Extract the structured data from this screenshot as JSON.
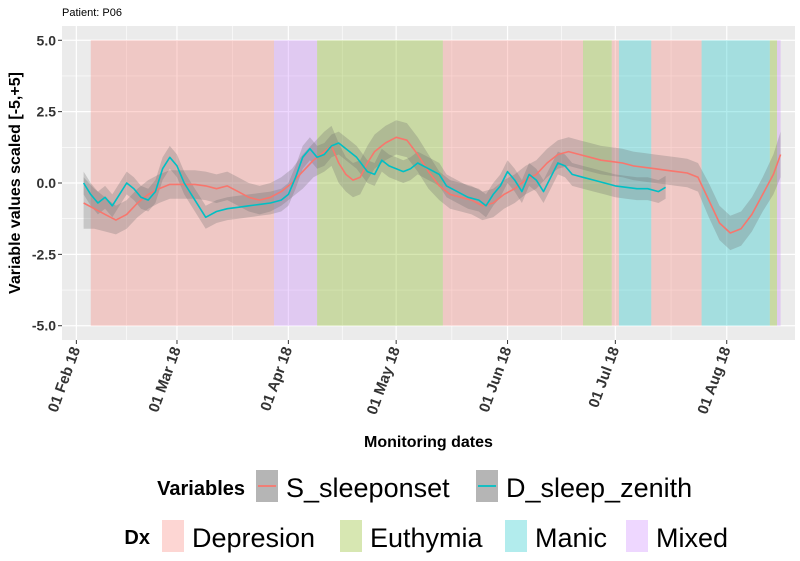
{
  "chart_data": {
    "type": "line",
    "title": "Patient: P06",
    "xlabel": "Monitoring dates",
    "ylabel": "Variable values scaled [-5,+5]",
    "x_type": "date",
    "xlim": [
      "2018-01-28",
      "2018-08-20"
    ],
    "ylim": [
      -5.5,
      5.5
    ],
    "x_ticks": [
      {
        "date": "2018-02-01",
        "label": "01 Feb 18"
      },
      {
        "date": "2018-03-01",
        "label": "01 Mar 18"
      },
      {
        "date": "2018-04-01",
        "label": "01 Apr 18"
      },
      {
        "date": "2018-05-01",
        "label": "01 May 18"
      },
      {
        "date": "2018-06-01",
        "label": "01 Jun 18"
      },
      {
        "date": "2018-07-01",
        "label": "01 Jul 18"
      },
      {
        "date": "2018-08-01",
        "label": "01 Aug 18"
      }
    ],
    "y_ticks": [
      {
        "value": 5,
        "label": "5.0"
      },
      {
        "value": 2.5,
        "label": "2.5"
      },
      {
        "value": 0,
        "label": "0.0"
      },
      {
        "value": -2.5,
        "label": "-2.5"
      },
      {
        "value": -5,
        "label": "-5.0"
      }
    ],
    "grid": true,
    "legend_position": "bottom",
    "legend": {
      "variables_title": "Variables",
      "dx_title": "Dx"
    },
    "dx_periods": [
      {
        "start": "2018-02-05",
        "end": "2018-03-28",
        "dx": "Depresion"
      },
      {
        "start": "2018-03-28",
        "end": "2018-04-09",
        "dx": "Mixed"
      },
      {
        "start": "2018-04-09",
        "end": "2018-05-14",
        "dx": "Euthymia"
      },
      {
        "start": "2018-05-14",
        "end": "2018-06-22",
        "dx": "Depresion"
      },
      {
        "start": "2018-06-22",
        "end": "2018-06-30",
        "dx": "Euthymia"
      },
      {
        "start": "2018-06-30",
        "end": "2018-07-02",
        "dx": "Depresion"
      },
      {
        "start": "2018-07-02",
        "end": "2018-07-11",
        "dx": "Manic"
      },
      {
        "start": "2018-07-11",
        "end": "2018-07-25",
        "dx": "Depresion"
      },
      {
        "start": "2018-07-25",
        "end": "2018-08-13",
        "dx": "Manic"
      },
      {
        "start": "2018-08-13",
        "end": "2018-08-15",
        "dx": "Euthymia"
      },
      {
        "start": "2018-08-15",
        "end": "2018-08-16",
        "dx": "Mixed"
      }
    ],
    "dx_categories": [
      {
        "name": "Depresion",
        "color": "#F8766D"
      },
      {
        "name": "Euthymia",
        "color": "#7CAE00"
      },
      {
        "name": "Manic",
        "color": "#00BFC4"
      },
      {
        "name": "Mixed",
        "color": "#C77CFF"
      }
    ],
    "series": [
      {
        "name": "S_sleeponset",
        "color": "#F8766D",
        "points": [
          [
            "2018-02-03",
            -0.7,
            0.9
          ],
          [
            "2018-02-06",
            -0.9,
            0.7
          ],
          [
            "2018-02-09",
            -1.1,
            0.6
          ],
          [
            "2018-02-12",
            -1.3,
            0.5
          ],
          [
            "2018-02-15",
            -1.1,
            0.5
          ],
          [
            "2018-02-18",
            -0.7,
            0.5
          ],
          [
            "2018-02-21",
            -0.4,
            0.5
          ],
          [
            "2018-02-24",
            -0.2,
            0.5
          ],
          [
            "2018-02-27",
            -0.05,
            0.5
          ],
          [
            "2018-03-03",
            -0.05,
            0.5
          ],
          [
            "2018-03-06",
            -0.05,
            0.5
          ],
          [
            "2018-03-09",
            -0.1,
            0.5
          ],
          [
            "2018-03-12",
            -0.2,
            0.5
          ],
          [
            "2018-03-15",
            -0.1,
            0.5
          ],
          [
            "2018-03-18",
            -0.3,
            0.5
          ],
          [
            "2018-03-21",
            -0.5,
            0.5
          ],
          [
            "2018-03-24",
            -0.6,
            0.5
          ],
          [
            "2018-03-27",
            -0.5,
            0.5
          ],
          [
            "2018-03-30",
            -0.3,
            0.5
          ],
          [
            "2018-04-02",
            0.0,
            0.5
          ],
          [
            "2018-04-05",
            0.4,
            0.6
          ],
          [
            "2018-04-08",
            0.8,
            0.6
          ],
          [
            "2018-04-11",
            1.1,
            0.7
          ],
          [
            "2018-04-13",
            1.3,
            0.7
          ],
          [
            "2018-04-15",
            0.7,
            0.7
          ],
          [
            "2018-04-17",
            0.3,
            0.6
          ],
          [
            "2018-04-19",
            0.1,
            0.6
          ],
          [
            "2018-04-21",
            0.2,
            0.6
          ],
          [
            "2018-04-23",
            0.7,
            0.6
          ],
          [
            "2018-04-25",
            1.1,
            0.6
          ],
          [
            "2018-04-28",
            1.4,
            0.6
          ],
          [
            "2018-05-01",
            1.6,
            0.6
          ],
          [
            "2018-05-04",
            1.5,
            0.6
          ],
          [
            "2018-05-07",
            1.0,
            0.6
          ],
          [
            "2018-05-10",
            0.4,
            0.6
          ],
          [
            "2018-05-13",
            -0.1,
            0.5
          ],
          [
            "2018-05-16",
            -0.4,
            0.5
          ],
          [
            "2018-05-19",
            -0.5,
            0.5
          ],
          [
            "2018-05-22",
            -0.6,
            0.5
          ],
          [
            "2018-05-25",
            -0.8,
            0.5
          ],
          [
            "2018-05-28",
            -0.7,
            0.5
          ],
          [
            "2018-05-31",
            -0.4,
            0.5
          ],
          [
            "2018-06-03",
            -0.2,
            0.5
          ],
          [
            "2018-06-06",
            0.1,
            0.5
          ],
          [
            "2018-06-09",
            0.3,
            0.5
          ],
          [
            "2018-06-12",
            0.7,
            0.5
          ],
          [
            "2018-06-15",
            1.0,
            0.5
          ],
          [
            "2018-06-18",
            1.1,
            0.5
          ],
          [
            "2018-06-21",
            1.0,
            0.5
          ],
          [
            "2018-06-24",
            0.9,
            0.5
          ],
          [
            "2018-06-27",
            0.8,
            0.5
          ],
          [
            "2018-06-30",
            0.75,
            0.5
          ],
          [
            "2018-07-03",
            0.7,
            0.5
          ],
          [
            "2018-07-06",
            0.6,
            0.5
          ],
          [
            "2018-07-09",
            0.55,
            0.5
          ],
          [
            "2018-07-12",
            0.5,
            0.5
          ],
          [
            "2018-07-15",
            0.45,
            0.5
          ],
          [
            "2018-07-18",
            0.4,
            0.5
          ],
          [
            "2018-07-21",
            0.35,
            0.5
          ],
          [
            "2018-07-24",
            0.2,
            0.5
          ],
          [
            "2018-07-27",
            -0.6,
            0.6
          ],
          [
            "2018-07-30",
            -1.4,
            0.6
          ],
          [
            "2018-08-02",
            -1.75,
            0.6
          ],
          [
            "2018-08-05",
            -1.6,
            0.6
          ],
          [
            "2018-08-08",
            -1.1,
            0.6
          ],
          [
            "2018-08-11",
            -0.4,
            0.6
          ],
          [
            "2018-08-14",
            0.3,
            0.7
          ],
          [
            "2018-08-16",
            1.0,
            0.8
          ]
        ]
      },
      {
        "name": "D_sleep_zenith",
        "color": "#00BFC4",
        "points": [
          [
            "2018-02-03",
            0.0,
            0.4
          ],
          [
            "2018-02-05",
            -0.4,
            0.4
          ],
          [
            "2018-02-07",
            -0.7,
            0.4
          ],
          [
            "2018-02-09",
            -0.5,
            0.4
          ],
          [
            "2018-02-11",
            -0.8,
            0.4
          ],
          [
            "2018-02-13",
            -0.4,
            0.4
          ],
          [
            "2018-02-15",
            0.0,
            0.4
          ],
          [
            "2018-02-17",
            -0.2,
            0.4
          ],
          [
            "2018-02-19",
            -0.5,
            0.4
          ],
          [
            "2018-02-21",
            -0.6,
            0.4
          ],
          [
            "2018-02-23",
            -0.3,
            0.4
          ],
          [
            "2018-02-25",
            0.5,
            0.4
          ],
          [
            "2018-02-27",
            0.9,
            0.4
          ],
          [
            "2018-03-01",
            0.6,
            0.4
          ],
          [
            "2018-03-03",
            0.0,
            0.4
          ],
          [
            "2018-03-06",
            -0.6,
            0.4
          ],
          [
            "2018-03-09",
            -1.2,
            0.4
          ],
          [
            "2018-03-12",
            -1.0,
            0.4
          ],
          [
            "2018-03-15",
            -0.9,
            0.4
          ],
          [
            "2018-03-18",
            -0.85,
            0.4
          ],
          [
            "2018-03-21",
            -0.8,
            0.4
          ],
          [
            "2018-03-24",
            -0.75,
            0.4
          ],
          [
            "2018-03-27",
            -0.7,
            0.4
          ],
          [
            "2018-03-30",
            -0.6,
            0.4
          ],
          [
            "2018-04-01",
            -0.4,
            0.4
          ],
          [
            "2018-04-03",
            0.2,
            0.4
          ],
          [
            "2018-04-05",
            0.9,
            0.4
          ],
          [
            "2018-04-07",
            1.2,
            0.4
          ],
          [
            "2018-04-09",
            0.9,
            0.4
          ],
          [
            "2018-04-11",
            1.0,
            0.4
          ],
          [
            "2018-04-13",
            1.3,
            0.4
          ],
          [
            "2018-04-15",
            1.4,
            0.4
          ],
          [
            "2018-04-17",
            1.2,
            0.4
          ],
          [
            "2018-04-20",
            0.9,
            0.4
          ],
          [
            "2018-04-23",
            0.4,
            0.4
          ],
          [
            "2018-04-25",
            0.3,
            0.4
          ],
          [
            "2018-04-27",
            0.8,
            0.4
          ],
          [
            "2018-04-29",
            0.6,
            0.4
          ],
          [
            "2018-05-01",
            0.5,
            0.4
          ],
          [
            "2018-05-03",
            0.4,
            0.4
          ],
          [
            "2018-05-05",
            0.5,
            0.4
          ],
          [
            "2018-05-07",
            0.7,
            0.4
          ],
          [
            "2018-05-10",
            0.5,
            0.4
          ],
          [
            "2018-05-13",
            0.3,
            0.4
          ],
          [
            "2018-05-15",
            -0.1,
            0.4
          ],
          [
            "2018-05-18",
            -0.3,
            0.4
          ],
          [
            "2018-05-21",
            -0.5,
            0.4
          ],
          [
            "2018-05-24",
            -0.6,
            0.4
          ],
          [
            "2018-05-26",
            -0.8,
            0.4
          ],
          [
            "2018-05-28",
            -0.4,
            0.4
          ],
          [
            "2018-05-30",
            -0.1,
            0.4
          ],
          [
            "2018-06-01",
            0.4,
            0.4
          ],
          [
            "2018-06-03",
            0.1,
            0.4
          ],
          [
            "2018-06-05",
            -0.3,
            0.4
          ],
          [
            "2018-06-07",
            0.3,
            0.4
          ],
          [
            "2018-06-09",
            0.1,
            0.4
          ],
          [
            "2018-06-11",
            -0.3,
            0.4
          ],
          [
            "2018-06-13",
            0.2,
            0.4
          ],
          [
            "2018-06-15",
            0.7,
            0.4
          ],
          [
            "2018-06-17",
            0.6,
            0.4
          ],
          [
            "2018-06-19",
            0.3,
            0.4
          ],
          [
            "2018-06-22",
            0.2,
            0.4
          ],
          [
            "2018-06-25",
            0.1,
            0.4
          ],
          [
            "2018-06-28",
            0.0,
            0.4
          ],
          [
            "2018-07-01",
            -0.1,
            0.4
          ],
          [
            "2018-07-04",
            -0.15,
            0.4
          ],
          [
            "2018-07-07",
            -0.2,
            0.4
          ],
          [
            "2018-07-10",
            -0.2,
            0.4
          ],
          [
            "2018-07-13",
            -0.3,
            0.4
          ],
          [
            "2018-07-15",
            -0.15,
            0.4
          ]
        ]
      }
    ]
  }
}
